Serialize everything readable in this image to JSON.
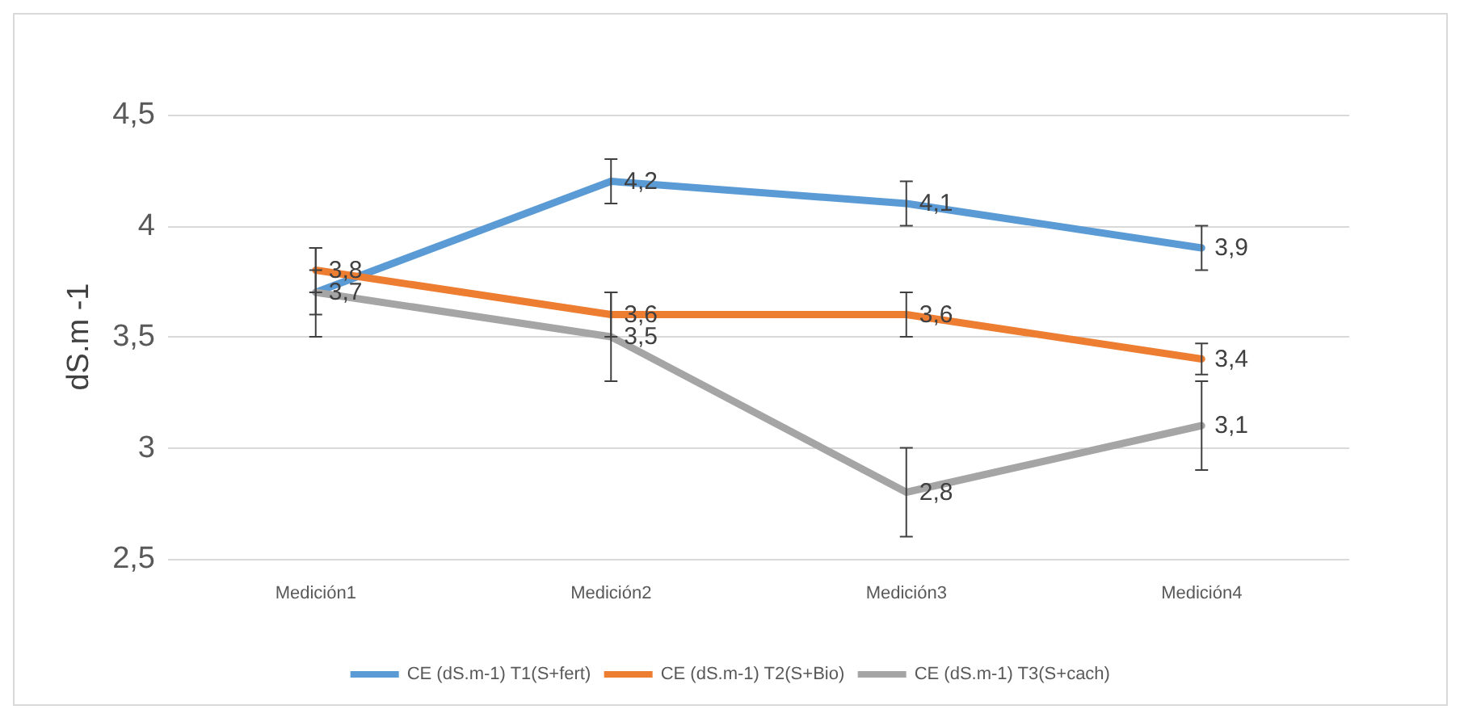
{
  "chart_data": {
    "type": "line",
    "ylabel": "dS.m -1",
    "categories": [
      "Medición1",
      "Medición2",
      "Medición3",
      "Medición4"
    ],
    "series": [
      {
        "name": "CE (dS.m-1) T1(S+fert)",
        "color": "#5b9bd5",
        "values": [
          3.7,
          4.2,
          4.1,
          3.9
        ],
        "errors": [
          0.1,
          0.1,
          0.1,
          0.1
        ],
        "value_labels": [
          "3,7",
          "4,2",
          "4,1",
          "3,9"
        ]
      },
      {
        "name": "CE (dS.m-1) T2(S+Bio)",
        "color": "#ed7d31",
        "values": [
          3.8,
          3.6,
          3.6,
          3.4
        ],
        "errors": [
          0.1,
          0.1,
          0.1,
          0.07
        ],
        "value_labels": [
          "3,8",
          "3,6",
          "3,6",
          "3,4"
        ]
      },
      {
        "name": "CE (dS.m-1) T3(S+cach)",
        "color": "#a5a5a5",
        "values": [
          3.7,
          3.5,
          2.8,
          3.1
        ],
        "errors": [
          0.2,
          0.2,
          0.2,
          0.2
        ],
        "value_labels": [
          null,
          "3,5",
          "2,8",
          "3,1"
        ]
      }
    ],
    "ylim": [
      2.5,
      4.5
    ],
    "yticks": [
      {
        "value": 2.5,
        "label": "2,5"
      },
      3,
      {
        "value": 3.5,
        "label": "3,5"
      },
      4,
      {
        "value": 4.5,
        "label": "4,5"
      }
    ],
    "grid": "y",
    "legend": "bottom",
    "marker": "none",
    "line_style": "solid"
  }
}
